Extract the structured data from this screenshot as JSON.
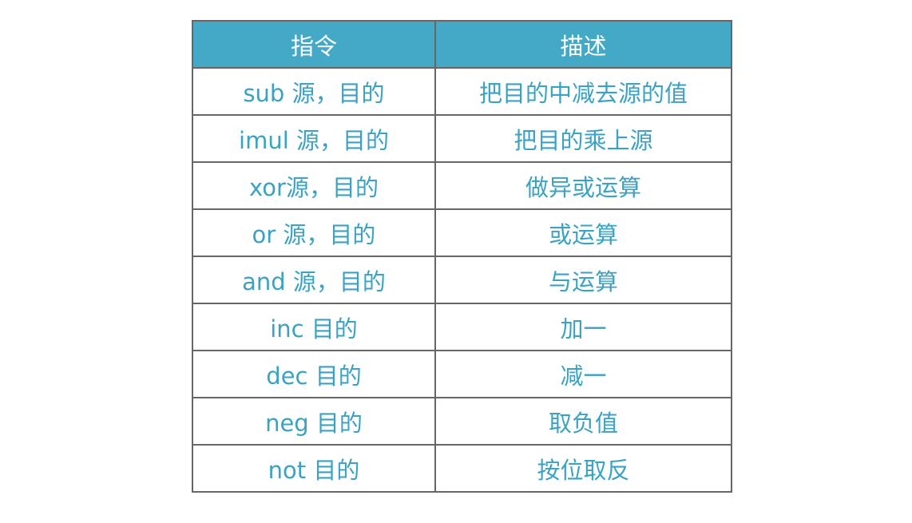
{
  "table": {
    "headers": [
      "指令",
      "描述"
    ],
    "rows": [
      [
        "sub 源，目的",
        "把目的中减去源的值"
      ],
      [
        "imul 源，目的",
        "把目的乘上源"
      ],
      [
        "xor源，目的",
        "做异或运算"
      ],
      [
        "or 源，目的",
        "或运算"
      ],
      [
        "and 源，目的",
        "与运算"
      ],
      [
        "inc 目的",
        "加一"
      ],
      [
        "dec 目的",
        "减一"
      ],
      [
        "neg 目的",
        "取负值"
      ],
      [
        "not 目的",
        "按位取反"
      ]
    ]
  },
  "colors": {
    "header_bg": "#44a9c6",
    "header_text": "#ffffff",
    "cell_text": "#3aa2c2",
    "border": "#666666"
  }
}
